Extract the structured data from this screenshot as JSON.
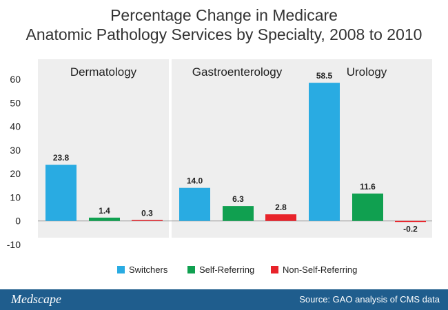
{
  "title_line1": "Percentage Change in Medicare",
  "title_line2": "Anatomic Pathology Services by Specialty, 2008 to 2010",
  "chart_data": {
    "type": "bar",
    "title": "Percentage Change in Medicare Anatomic Pathology Services by Specialty, 2008 to 2010",
    "groups": [
      "Dermatology",
      "Gastroenterology",
      "Urology"
    ],
    "series": [
      {
        "name": "Switchers",
        "color": "#29abe2",
        "values": [
          23.8,
          14.0,
          58.5
        ]
      },
      {
        "name": "Self-Referring",
        "color": "#10a050",
        "values": [
          1.4,
          6.3,
          11.6
        ]
      },
      {
        "name": "Non-Self-Referring",
        "color": "#e8232a",
        "values": [
          0.3,
          2.8,
          -0.2
        ]
      }
    ],
    "value_labels": [
      [
        "23.8",
        "1.4",
        "0.3"
      ],
      [
        "14.0",
        "6.3",
        "2.8"
      ],
      [
        "58.5",
        "11.6",
        "-0.2"
      ]
    ],
    "ylim": [
      -10,
      60
    ],
    "yticks": [
      -10,
      0,
      10,
      20,
      30,
      40,
      50,
      60
    ],
    "ytick_labels": [
      "-10",
      "0",
      "10",
      "20",
      "30",
      "40",
      "50",
      "60"
    ],
    "legend_position": "bottom",
    "grid": false
  },
  "footer": {
    "brand": "Medscape",
    "source": "Source: GAO analysis of CMS data",
    "background": "#1f5d8d"
  }
}
